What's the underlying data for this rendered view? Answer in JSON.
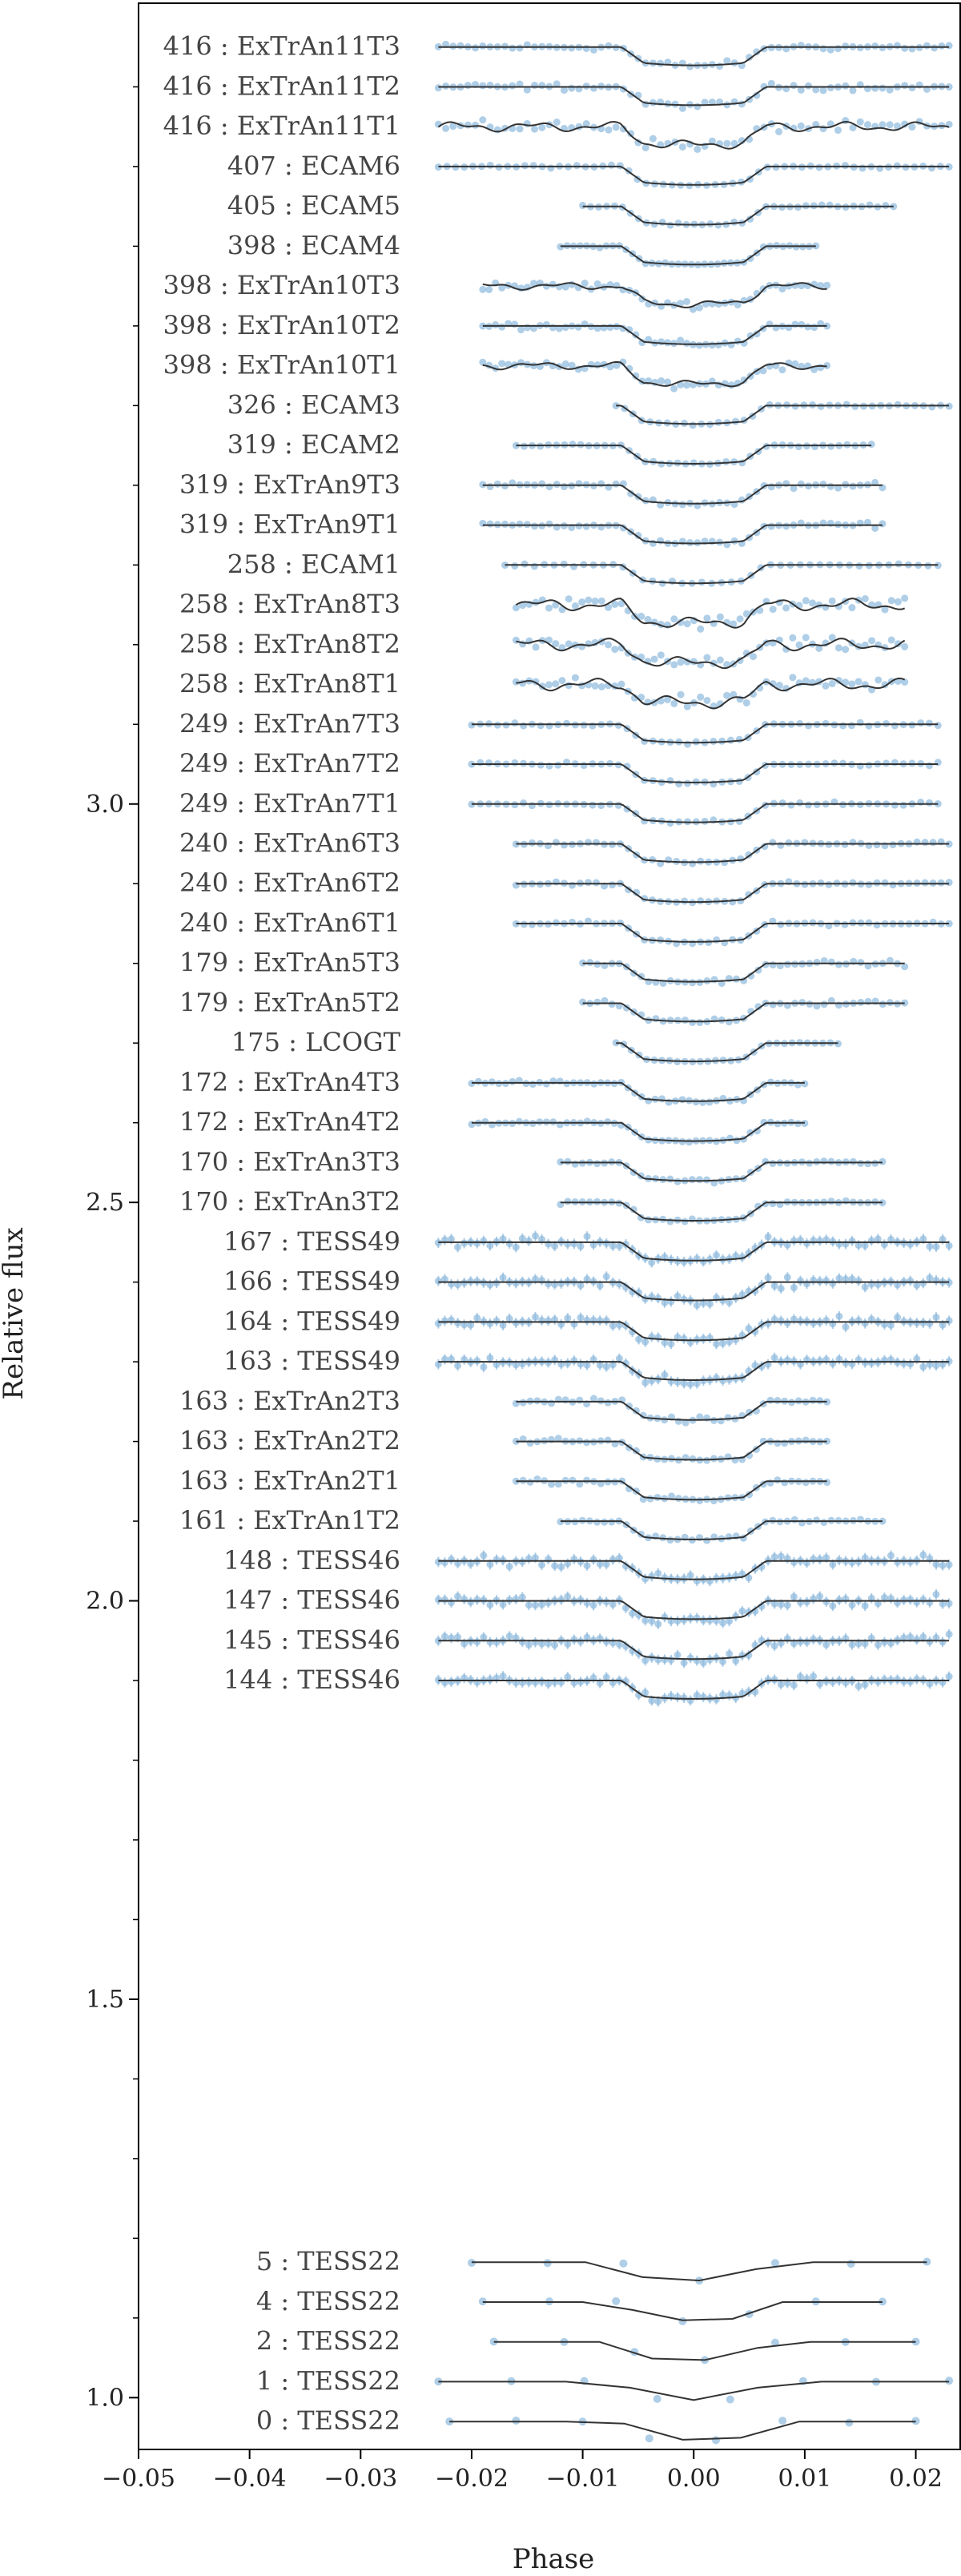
{
  "colors": {
    "points": "#8db9dd",
    "model": "#333333",
    "axes": "#000000",
    "labels": "#444444"
  },
  "chart_data": {
    "type": "scatter",
    "title": "",
    "xlabel": "Phase",
    "ylabel": "Relative flux",
    "xlim": [
      -0.05,
      0.024
    ],
    "ylim": [
      0.935,
      4.005
    ],
    "grid": false,
    "legend": "none",
    "x_ticks": [
      -0.05,
      -0.04,
      -0.03,
      -0.02,
      -0.01,
      0.0,
      0.01,
      0.02
    ],
    "x_tick_labels": [
      "−0.05",
      "−0.04",
      "−0.03",
      "−0.02",
      "−0.01",
      "0.00",
      "0.01",
      "0.02"
    ],
    "y_major_ticks": [
      1.0,
      1.5,
      2.0,
      2.5,
      3.0
    ],
    "y_tick_labels": [
      "1.0",
      "1.5",
      "2.0",
      "2.5",
      "3.0"
    ],
    "y_minor_ticks": [
      1.1,
      1.2,
      1.3,
      1.4,
      1.6,
      1.7,
      1.8,
      1.9,
      2.1,
      2.2,
      2.3,
      2.4,
      2.6,
      2.7,
      2.8,
      2.9,
      3.1,
      3.2,
      3.3,
      3.4,
      3.5,
      3.6,
      3.7,
      3.8,
      3.9
    ],
    "transit": {
      "ingress_start": -0.0065,
      "ingress_end": -0.0045,
      "egress_start": 0.0045,
      "egress_end": 0.0065,
      "depth": 0.02
    },
    "series": [
      {
        "label": "416 : ExTrAn11T3",
        "offset": 3.95,
        "xmin": -0.023,
        "xmax": 0.023,
        "noise": 0.005,
        "npts": 70,
        "mode": "smooth"
      },
      {
        "label": "416 : ExTrAn11T2",
        "offset": 3.9,
        "xmin": -0.023,
        "xmax": 0.023,
        "noise": 0.005,
        "npts": 70,
        "mode": "smooth"
      },
      {
        "label": "416 : ExTrAn11T1",
        "offset": 3.85,
        "xmin": -0.023,
        "xmax": 0.023,
        "noise": 0.008,
        "npts": 70,
        "mode": "wiggly"
      },
      {
        "label": "407 : ECAM6",
        "offset": 3.8,
        "xmin": -0.023,
        "xmax": 0.023,
        "noise": 0.002,
        "npts": 60,
        "mode": "smooth"
      },
      {
        "label": "405 : ECAM5",
        "offset": 3.75,
        "xmin": -0.01,
        "xmax": 0.018,
        "noise": 0.002,
        "npts": 40,
        "mode": "smooth"
      },
      {
        "label": "398 : ECAM4",
        "offset": 3.7,
        "xmin": -0.012,
        "xmax": 0.011,
        "noise": 0.002,
        "npts": 40,
        "mode": "smooth"
      },
      {
        "label": "398 : ExTrAn10T3",
        "offset": 3.65,
        "xmin": -0.019,
        "xmax": 0.012,
        "noise": 0.006,
        "npts": 55,
        "mode": "wiggly"
      },
      {
        "label": "398 : ExTrAn10T2",
        "offset": 3.6,
        "xmin": -0.019,
        "xmax": 0.012,
        "noise": 0.005,
        "npts": 55,
        "mode": "smooth"
      },
      {
        "label": "398 : ExTrAn10T1",
        "offset": 3.55,
        "xmin": -0.019,
        "xmax": 0.012,
        "noise": 0.006,
        "npts": 55,
        "mode": "wiggly"
      },
      {
        "label": "326 : ECAM3",
        "offset": 3.5,
        "xmin": -0.007,
        "xmax": 0.023,
        "noise": 0.002,
        "npts": 40,
        "mode": "smooth"
      },
      {
        "label": "319 : ECAM2",
        "offset": 3.45,
        "xmin": -0.016,
        "xmax": 0.016,
        "noise": 0.002,
        "npts": 45,
        "mode": "smooth"
      },
      {
        "label": "319 : ExTrAn9T3",
        "offset": 3.4,
        "xmin": -0.019,
        "xmax": 0.017,
        "noise": 0.004,
        "npts": 55,
        "mode": "smooth"
      },
      {
        "label": "319 : ExTrAn9T1",
        "offset": 3.35,
        "xmin": -0.019,
        "xmax": 0.017,
        "noise": 0.004,
        "npts": 55,
        "mode": "smooth"
      },
      {
        "label": "258 : ECAM1",
        "offset": 3.3,
        "xmin": -0.017,
        "xmax": 0.022,
        "noise": 0.002,
        "npts": 45,
        "mode": "smooth"
      },
      {
        "label": "258 : ExTrAn8T3",
        "offset": 3.25,
        "xmin": -0.016,
        "xmax": 0.019,
        "noise": 0.01,
        "npts": 60,
        "mode": "wiggly"
      },
      {
        "label": "258 : ExTrAn8T2",
        "offset": 3.2,
        "xmin": -0.016,
        "xmax": 0.019,
        "noise": 0.01,
        "npts": 60,
        "mode": "wiggly"
      },
      {
        "label": "258 : ExTrAn8T1",
        "offset": 3.15,
        "xmin": -0.016,
        "xmax": 0.019,
        "noise": 0.01,
        "npts": 60,
        "mode": "wiggly"
      },
      {
        "label": "249 : ExTrAn7T3",
        "offset": 3.1,
        "xmin": -0.02,
        "xmax": 0.022,
        "noise": 0.003,
        "npts": 55,
        "mode": "smooth"
      },
      {
        "label": "249 : ExTrAn7T2",
        "offset": 3.05,
        "xmin": -0.02,
        "xmax": 0.022,
        "noise": 0.003,
        "npts": 55,
        "mode": "smooth"
      },
      {
        "label": "249 : ExTrAn7T1",
        "offset": 3.0,
        "xmin": -0.02,
        "xmax": 0.022,
        "noise": 0.003,
        "npts": 55,
        "mode": "smooth"
      },
      {
        "label": "240 : ExTrAn6T3",
        "offset": 2.95,
        "xmin": -0.016,
        "xmax": 0.023,
        "noise": 0.003,
        "npts": 55,
        "mode": "smooth"
      },
      {
        "label": "240 : ExTrAn6T2",
        "offset": 2.9,
        "xmin": -0.016,
        "xmax": 0.023,
        "noise": 0.003,
        "npts": 55,
        "mode": "smooth"
      },
      {
        "label": "240 : ExTrAn6T1",
        "offset": 2.85,
        "xmin": -0.016,
        "xmax": 0.023,
        "noise": 0.003,
        "npts": 55,
        "mode": "smooth"
      },
      {
        "label": "179 : ExTrAn5T3",
        "offset": 2.8,
        "xmin": -0.01,
        "xmax": 0.019,
        "noise": 0.004,
        "npts": 45,
        "mode": "smooth"
      },
      {
        "label": "179 : ExTrAn5T2",
        "offset": 2.75,
        "xmin": -0.01,
        "xmax": 0.019,
        "noise": 0.004,
        "npts": 45,
        "mode": "smooth"
      },
      {
        "label": "175 : LCOGT",
        "offset": 2.7,
        "xmin": -0.007,
        "xmax": 0.013,
        "noise": 0.001,
        "npts": 30,
        "mode": "smooth"
      },
      {
        "label": "172 : ExTrAn4T3",
        "offset": 2.65,
        "xmin": -0.02,
        "xmax": 0.01,
        "noise": 0.003,
        "npts": 50,
        "mode": "smooth"
      },
      {
        "label": "172 : ExTrAn4T2",
        "offset": 2.6,
        "xmin": -0.02,
        "xmax": 0.01,
        "noise": 0.003,
        "npts": 50,
        "mode": "smooth"
      },
      {
        "label": "170 : ExTrAn3T3",
        "offset": 2.55,
        "xmin": -0.012,
        "xmax": 0.017,
        "noise": 0.003,
        "npts": 45,
        "mode": "smooth"
      },
      {
        "label": "170 : ExTrAn3T2",
        "offset": 2.5,
        "xmin": -0.012,
        "xmax": 0.017,
        "noise": 0.003,
        "npts": 45,
        "mode": "smooth"
      },
      {
        "label": "167 : TESS49",
        "offset": 2.45,
        "xmin": -0.023,
        "xmax": 0.023,
        "noise": 0.008,
        "npts": 80,
        "mode": "tess"
      },
      {
        "label": "166 : TESS49",
        "offset": 2.4,
        "xmin": -0.023,
        "xmax": 0.023,
        "noise": 0.008,
        "npts": 80,
        "mode": "tess"
      },
      {
        "label": "164 : TESS49",
        "offset": 2.35,
        "xmin": -0.023,
        "xmax": 0.023,
        "noise": 0.008,
        "npts": 80,
        "mode": "tess"
      },
      {
        "label": "163 : TESS49",
        "offset": 2.3,
        "xmin": -0.023,
        "xmax": 0.023,
        "noise": 0.008,
        "npts": 80,
        "mode": "tess"
      },
      {
        "label": "163 : ExTrAn2T3",
        "offset": 2.25,
        "xmin": -0.016,
        "xmax": 0.012,
        "noise": 0.004,
        "npts": 45,
        "mode": "smooth"
      },
      {
        "label": "163 : ExTrAn2T2",
        "offset": 2.2,
        "xmin": -0.016,
        "xmax": 0.012,
        "noise": 0.004,
        "npts": 45,
        "mode": "smooth"
      },
      {
        "label": "163 : ExTrAn2T1",
        "offset": 2.15,
        "xmin": -0.016,
        "xmax": 0.012,
        "noise": 0.004,
        "npts": 45,
        "mode": "smooth"
      },
      {
        "label": "161 : ExTrAn1T2",
        "offset": 2.1,
        "xmin": -0.012,
        "xmax": 0.017,
        "noise": 0.003,
        "npts": 45,
        "mode": "smooth"
      },
      {
        "label": "148 : TESS46",
        "offset": 2.05,
        "xmin": -0.023,
        "xmax": 0.023,
        "noise": 0.008,
        "npts": 80,
        "mode": "tess"
      },
      {
        "label": "147 : TESS46",
        "offset": 2.0,
        "xmin": -0.023,
        "xmax": 0.023,
        "noise": 0.008,
        "npts": 80,
        "mode": "tess"
      },
      {
        "label": "145 : TESS46",
        "offset": 1.95,
        "xmin": -0.023,
        "xmax": 0.023,
        "noise": 0.008,
        "npts": 80,
        "mode": "tess"
      },
      {
        "label": "144 : TESS46",
        "offset": 1.9,
        "xmin": -0.023,
        "xmax": 0.023,
        "noise": 0.008,
        "npts": 80,
        "mode": "tess"
      },
      {
        "label": "5 : TESS22",
        "offset": 1.17,
        "xmin": -0.02,
        "xmax": 0.021,
        "noise": 0.002,
        "npts": 7,
        "mode": "sparse"
      },
      {
        "label": "4 : TESS22",
        "offset": 1.12,
        "xmin": -0.019,
        "xmax": 0.017,
        "noise": 0.002,
        "npts": 7,
        "mode": "sparse"
      },
      {
        "label": "2 : TESS22",
        "offset": 1.07,
        "xmin": -0.018,
        "xmax": 0.02,
        "noise": 0.002,
        "npts": 7,
        "mode": "sparse"
      },
      {
        "label": "1 : TESS22",
        "offset": 1.02,
        "xmin": -0.023,
        "xmax": 0.023,
        "noise": 0.002,
        "npts": 8,
        "mode": "sparse"
      },
      {
        "label": "0 : TESS22",
        "offset": 0.97,
        "xmin": -0.022,
        "xmax": 0.02,
        "noise": 0.002,
        "npts": 8,
        "mode": "sparse"
      }
    ]
  }
}
